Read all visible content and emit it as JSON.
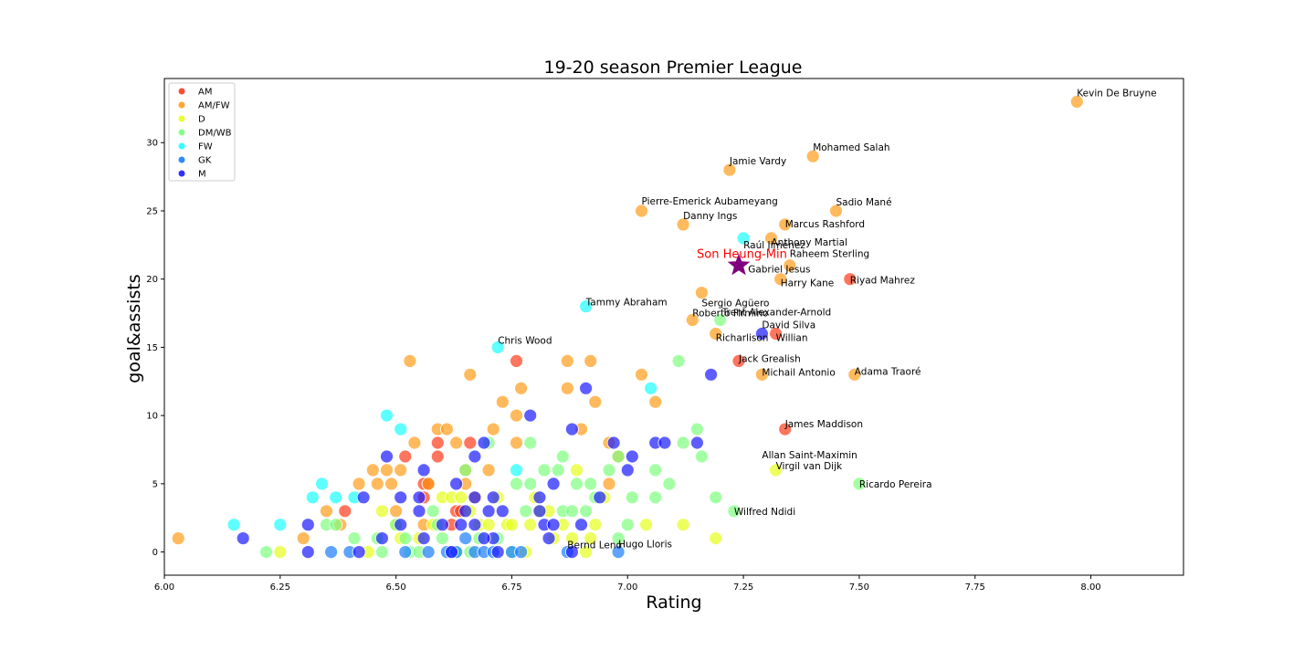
{
  "chart_data": {
    "type": "scatter",
    "title": "19-20 season Premier League",
    "xlabel": "Rating",
    "ylabel": "goal&assists",
    "xlim": [
      6.0,
      8.2
    ],
    "ylim": [
      -1.7,
      34.7
    ],
    "xticks": [
      "6.00",
      "6.25",
      "6.50",
      "6.75",
      "7.00",
      "7.25",
      "7.50",
      "7.75",
      "8.00"
    ],
    "yticks": [
      "0",
      "5",
      "10",
      "15",
      "20",
      "25",
      "30"
    ],
    "legend_position": "top-left",
    "grid": false,
    "series": [
      {
        "name": "AM",
        "color": "#ff3a1a",
        "points": [
          [
            6.39,
            3
          ],
          [
            6.52,
            7
          ],
          [
            6.56,
            5
          ],
          [
            6.57,
            5
          ],
          [
            6.59,
            7
          ],
          [
            6.59,
            8
          ],
          [
            6.63,
            3
          ],
          [
            6.64,
            3
          ],
          [
            6.66,
            8
          ],
          [
            6.76,
            14
          ],
          [
            6.56,
            4
          ],
          [
            6.62,
            2
          ],
          [
            7.24,
            14
          ],
          [
            7.32,
            16
          ],
          [
            7.34,
            9
          ],
          [
            7.48,
            20
          ]
        ]
      },
      {
        "name": "AM/FW",
        "color": "#ff9c1a",
        "points": [
          [
            6.03,
            1
          ],
          [
            6.3,
            1
          ],
          [
            6.35,
            3
          ],
          [
            6.38,
            2
          ],
          [
            6.42,
            5
          ],
          [
            6.45,
            6
          ],
          [
            6.46,
            5
          ],
          [
            6.48,
            6
          ],
          [
            6.49,
            5
          ],
          [
            6.5,
            3
          ],
          [
            6.51,
            6
          ],
          [
            6.53,
            14
          ],
          [
            6.54,
            8
          ],
          [
            6.57,
            5
          ],
          [
            6.59,
            9
          ],
          [
            6.61,
            9
          ],
          [
            6.63,
            8
          ],
          [
            6.65,
            6
          ],
          [
            6.66,
            13
          ],
          [
            6.67,
            4
          ],
          [
            6.7,
            6
          ],
          [
            6.71,
            9
          ],
          [
            6.73,
            11
          ],
          [
            6.76,
            8
          ],
          [
            6.76,
            10
          ],
          [
            6.77,
            12
          ],
          [
            6.87,
            12
          ],
          [
            6.87,
            14
          ],
          [
            6.9,
            9
          ],
          [
            6.92,
            14
          ],
          [
            6.93,
            11
          ],
          [
            6.96,
            5
          ],
          [
            6.96,
            8
          ],
          [
            6.98,
            7
          ],
          [
            7.03,
            13
          ],
          [
            7.06,
            11
          ],
          [
            6.65,
            5
          ],
          [
            6.56,
            2
          ],
          [
            7.03,
            25
          ],
          [
            7.12,
            24
          ],
          [
            7.14,
            17
          ],
          [
            7.16,
            19
          ],
          [
            7.19,
            16
          ],
          [
            7.22,
            28
          ],
          [
            7.29,
            13
          ],
          [
            7.31,
            23
          ],
          [
            7.33,
            20
          ],
          [
            7.34,
            24
          ],
          [
            7.35,
            21
          ],
          [
            7.4,
            29
          ],
          [
            7.45,
            25
          ],
          [
            7.49,
            13
          ],
          [
            7.97,
            33
          ]
        ]
      },
      {
        "name": "D",
        "color": "#e6ff1a",
        "points": [
          [
            6.25,
            0
          ],
          [
            6.44,
            0
          ],
          [
            6.47,
            3
          ],
          [
            6.5,
            2
          ],
          [
            6.51,
            1
          ],
          [
            6.55,
            1
          ],
          [
            6.58,
            2
          ],
          [
            6.6,
            4
          ],
          [
            6.62,
            4
          ],
          [
            6.64,
            4
          ],
          [
            6.66,
            3
          ],
          [
            6.68,
            2
          ],
          [
            6.7,
            2
          ],
          [
            6.72,
            4
          ],
          [
            6.74,
            2
          ],
          [
            6.75,
            2
          ],
          [
            6.78,
            0
          ],
          [
            6.79,
            2
          ],
          [
            6.8,
            4
          ],
          [
            6.81,
            3
          ],
          [
            6.83,
            3
          ],
          [
            6.84,
            1
          ],
          [
            6.86,
            2
          ],
          [
            6.88,
            1
          ],
          [
            6.89,
            6
          ],
          [
            6.91,
            0
          ],
          [
            6.92,
            1
          ],
          [
            6.93,
            2
          ],
          [
            6.95,
            4
          ],
          [
            7.04,
            2
          ],
          [
            7.12,
            2
          ],
          [
            7.19,
            1
          ],
          [
            7.32,
            6
          ]
        ]
      },
      {
        "name": "DM/WB",
        "color": "#7dff7d",
        "points": [
          [
            6.22,
            0
          ],
          [
            6.35,
            2
          ],
          [
            6.37,
            2
          ],
          [
            6.41,
            1
          ],
          [
            6.46,
            1
          ],
          [
            6.47,
            0
          ],
          [
            6.5,
            2
          ],
          [
            6.52,
            1
          ],
          [
            6.53,
            0
          ],
          [
            6.55,
            0
          ],
          [
            6.58,
            3
          ],
          [
            6.59,
            2
          ],
          [
            6.6,
            1
          ],
          [
            6.63,
            0
          ],
          [
            6.65,
            6
          ],
          [
            6.66,
            0
          ],
          [
            6.68,
            1
          ],
          [
            6.7,
            8
          ],
          [
            6.72,
            1
          ],
          [
            6.75,
            0
          ],
          [
            6.76,
            5
          ],
          [
            6.78,
            3
          ],
          [
            6.79,
            5
          ],
          [
            6.79,
            8
          ],
          [
            6.82,
            6
          ],
          [
            6.85,
            6
          ],
          [
            6.86,
            7
          ],
          [
            6.86,
            3
          ],
          [
            6.88,
            3
          ],
          [
            6.89,
            5
          ],
          [
            6.91,
            3
          ],
          [
            6.92,
            5
          ],
          [
            6.93,
            4
          ],
          [
            6.96,
            6
          ],
          [
            6.98,
            1
          ],
          [
            6.98,
            7
          ],
          [
            7.0,
            2
          ],
          [
            7.01,
            4
          ],
          [
            7.06,
            6
          ],
          [
            7.06,
            4
          ],
          [
            7.09,
            5
          ],
          [
            7.11,
            14
          ],
          [
            7.12,
            8
          ],
          [
            7.15,
            9
          ],
          [
            7.16,
            7
          ],
          [
            7.19,
            4
          ],
          [
            7.2,
            17
          ],
          [
            7.23,
            3
          ],
          [
            7.5,
            5
          ]
        ]
      },
      {
        "name": "FW",
        "color": "#1affff",
        "points": [
          [
            6.15,
            2
          ],
          [
            6.25,
            2
          ],
          [
            6.32,
            4
          ],
          [
            6.34,
            5
          ],
          [
            6.37,
            4
          ],
          [
            6.41,
            4
          ],
          [
            6.48,
            10
          ],
          [
            6.51,
            9
          ],
          [
            6.72,
            15
          ],
          [
            6.76,
            6
          ],
          [
            6.91,
            18
          ],
          [
            7.05,
            12
          ],
          [
            7.25,
            23
          ]
        ]
      },
      {
        "name": "GK",
        "color": "#1a7dff",
        "points": [
          [
            6.36,
            0
          ],
          [
            6.4,
            0
          ],
          [
            6.52,
            0
          ],
          [
            6.57,
            0
          ],
          [
            6.61,
            0
          ],
          [
            6.62,
            0
          ],
          [
            6.63,
            0
          ],
          [
            6.65,
            1
          ],
          [
            6.67,
            0
          ],
          [
            6.69,
            0
          ],
          [
            6.71,
            0
          ],
          [
            6.75,
            0
          ],
          [
            6.77,
            0
          ],
          [
            6.87,
            0
          ],
          [
            6.98,
            0
          ]
        ]
      },
      {
        "name": "M",
        "color": "#1a1aff",
        "points": [
          [
            6.17,
            1
          ],
          [
            6.31,
            2
          ],
          [
            6.31,
            0
          ],
          [
            6.42,
            0
          ],
          [
            6.43,
            4
          ],
          [
            6.47,
            1
          ],
          [
            6.48,
            7
          ],
          [
            6.51,
            4
          ],
          [
            6.51,
            2
          ],
          [
            6.55,
            3
          ],
          [
            6.55,
            4
          ],
          [
            6.56,
            6
          ],
          [
            6.56,
            1
          ],
          [
            6.6,
            2
          ],
          [
            6.62,
            0
          ],
          [
            6.63,
            5
          ],
          [
            6.64,
            2
          ],
          [
            6.65,
            3
          ],
          [
            6.67,
            7
          ],
          [
            6.67,
            4
          ],
          [
            6.69,
            8
          ],
          [
            6.7,
            3
          ],
          [
            6.71,
            4
          ],
          [
            6.71,
            1
          ],
          [
            6.72,
            0
          ],
          [
            6.73,
            3
          ],
          [
            6.79,
            10
          ],
          [
            6.81,
            4
          ],
          [
            6.81,
            3
          ],
          [
            6.82,
            2
          ],
          [
            6.84,
            5
          ],
          [
            6.84,
            2
          ],
          [
            6.83,
            1
          ],
          [
            6.88,
            9
          ],
          [
            6.88,
            0
          ],
          [
            6.9,
            2
          ],
          [
            6.91,
            12
          ],
          [
            6.94,
            4
          ],
          [
            6.97,
            8
          ],
          [
            7.0,
            6
          ],
          [
            7.01,
            7
          ],
          [
            7.06,
            8
          ],
          [
            7.08,
            8
          ],
          [
            7.15,
            8
          ],
          [
            7.18,
            13
          ],
          [
            7.29,
            16
          ],
          [
            6.69,
            1
          ],
          [
            6.67,
            2
          ]
        ]
      }
    ],
    "highlight": {
      "name": "Son Heung-Min",
      "x": 7.24,
      "y": 21,
      "color": "#800080",
      "label_color": "#ff0000"
    },
    "annotations": [
      {
        "label": "Kevin De Bruyne",
        "x": 7.97,
        "y": 33
      },
      {
        "label": "Mohamed Salah",
        "x": 7.4,
        "y": 29
      },
      {
        "label": "Jamie Vardy",
        "x": 7.22,
        "y": 28
      },
      {
        "label": "Pierre-Emerick Aubameyang",
        "x": 7.03,
        "y": 25
      },
      {
        "label": "Sadio Mané",
        "x": 7.45,
        "y": 25
      },
      {
        "label": "Danny Ings",
        "x": 7.12,
        "y": 24
      },
      {
        "label": "Marcus Rashford",
        "x": 7.34,
        "y": 24
      },
      {
        "label": "Raúl Jiménez",
        "x": 7.25,
        "y": 23
      },
      {
        "label": "Anthony Martial",
        "x": 7.31,
        "y": 23
      },
      {
        "label": "Raheem Sterling",
        "x": 7.35,
        "y": 21
      },
      {
        "label": "Gabriel Jesus",
        "x": 7.26,
        "y": 21
      },
      {
        "label": "Harry Kane",
        "x": 7.33,
        "y": 20
      },
      {
        "label": "Riyad Mahrez",
        "x": 7.48,
        "y": 20
      },
      {
        "label": "Sergio Agüero",
        "x": 7.16,
        "y": 19
      },
      {
        "label": "Tammy Abraham",
        "x": 6.91,
        "y": 18
      },
      {
        "label": "Trent Alexander-Arnold",
        "x": 7.2,
        "y": 17
      },
      {
        "label": "Roberto Firmino",
        "x": 7.14,
        "y": 17
      },
      {
        "label": "David Silva",
        "x": 7.29,
        "y": 16
      },
      {
        "label": "Richarlison",
        "x": 7.19,
        "y": 16
      },
      {
        "label": "Willian",
        "x": 7.32,
        "y": 16
      },
      {
        "label": "Chris Wood",
        "x": 6.72,
        "y": 15
      },
      {
        "label": "Jack Grealish",
        "x": 7.24,
        "y": 14
      },
      {
        "label": "Michail Antonio",
        "x": 7.29,
        "y": 13
      },
      {
        "label": "Adama Traoré",
        "x": 7.49,
        "y": 13
      },
      {
        "label": "James Maddison",
        "x": 7.34,
        "y": 9
      },
      {
        "label": "Allan Saint-Maximin",
        "x": 7.29,
        "y": 7
      },
      {
        "label": "Virgil van Dijk",
        "x": 7.32,
        "y": 6
      },
      {
        "label": "Ricardo Pereira",
        "x": 7.5,
        "y": 5
      },
      {
        "label": "Wilfred Ndidi",
        "x": 7.23,
        "y": 3
      },
      {
        "label": "Bernd Leno",
        "x": 6.87,
        "y": 0
      },
      {
        "label": "Hugo Lloris",
        "x": 6.98,
        "y": 0
      }
    ]
  }
}
